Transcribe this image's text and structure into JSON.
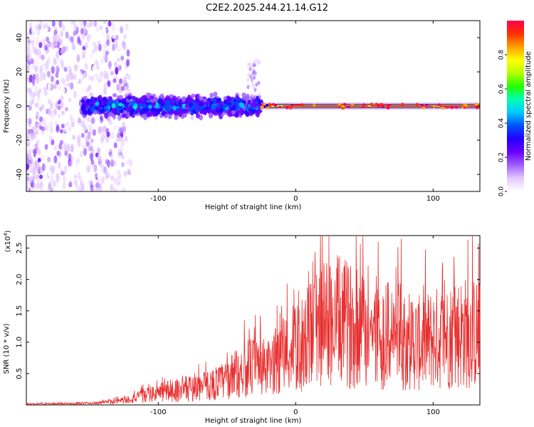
{
  "title": "C2E2.2025.244.21.14.G12",
  "chart_data": [
    {
      "type": "heatmap",
      "xlabel": "Height of straight line (km)",
      "ylabel": "Frequency (Hz)",
      "xlim": [
        -196,
        134
      ],
      "ylim": [
        -50,
        50
      ],
      "xticks": [
        -100,
        0,
        100
      ],
      "yticks": [
        -40,
        -20,
        0,
        20,
        40
      ],
      "colorbar": {
        "label": "Normalized spectral amplitude",
        "range": [
          0,
          1
        ],
        "ticks": [
          "0.0",
          "0.2",
          "0.4",
          "0.6",
          "0.8"
        ],
        "colors": [
          "#ffffff",
          "#e4c8ff",
          "#a060ff",
          "#6a00ff",
          "#2400ff",
          "#0050ff",
          "#00c8ff",
          "#00ffb4",
          "#22ff00",
          "#b4ff00",
          "#ffff00",
          "#ffa000",
          "#ff3000",
          "#ff0050"
        ]
      },
      "description_points": {
        "noise_region_x": [
          -196,
          -120
        ],
        "active_band_x": [
          -155,
          -25
        ],
        "active_band_halfwidth_hz": 6,
        "narrow_line_x": [
          -25,
          134
        ],
        "narrow_line_freq_hz": 0
      }
    },
    {
      "type": "line",
      "xlabel": "Height of straight line (km)",
      "ylabel": "SNR (10 * v/v)",
      "exponent_label": "(x10",
      "exponent_power": "4",
      "exponent_close": ")",
      "xlim": [
        -196,
        134
      ],
      "ylim": [
        0,
        2.7
      ],
      "xticks": [
        -100,
        0,
        100
      ],
      "yticks": [
        "0.5",
        "1.0",
        "1.5",
        "2.0",
        "2.5"
      ],
      "line_color": "#e83030",
      "envelope": {
        "x": [
          -196,
          -160,
          -140,
          -125,
          -110,
          -95,
          -80,
          -65,
          -50,
          -40,
          -30,
          -20,
          -10,
          0,
          10,
          20,
          30,
          40,
          50,
          60,
          70,
          80,
          90,
          100,
          110,
          120,
          134
        ],
        "y": [
          0.02,
          0.03,
          0.05,
          0.1,
          0.2,
          0.3,
          0.35,
          0.42,
          0.55,
          0.75,
          0.85,
          0.8,
          1.1,
          1.2,
          1.5,
          1.8,
          1.85,
          1.75,
          1.65,
          1.5,
          1.55,
          1.45,
          1.35,
          1.45,
          1.5,
          1.6,
          1.55
        ]
      }
    }
  ]
}
